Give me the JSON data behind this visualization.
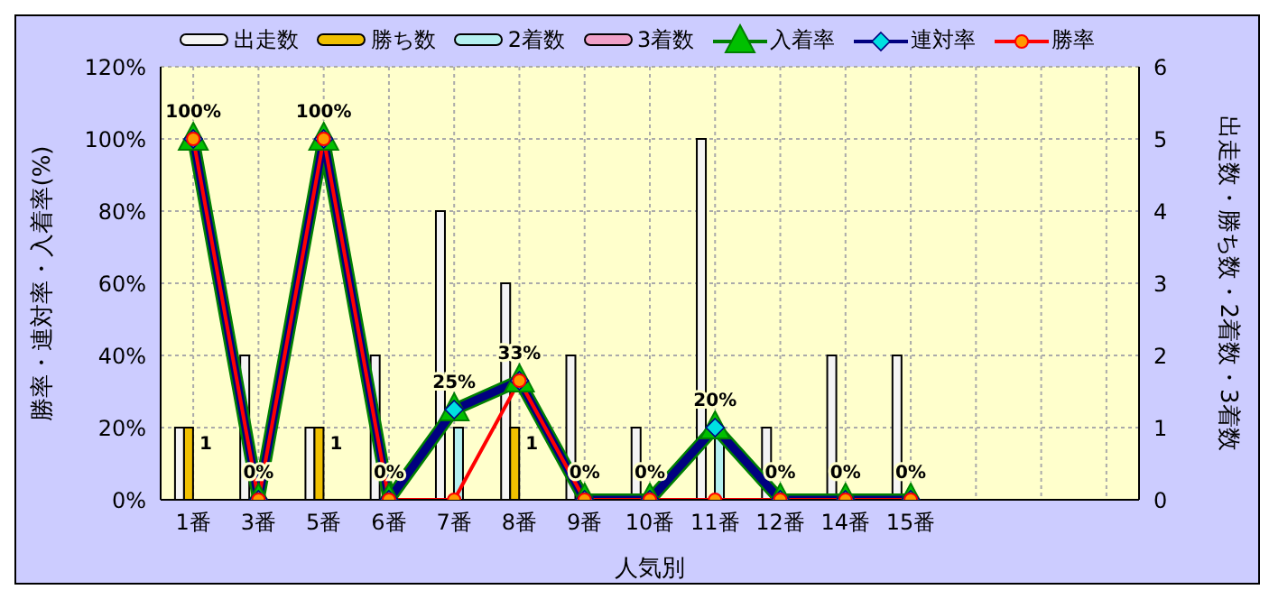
{
  "chart_data": {
    "type": "bar",
    "xlabel": "人気別",
    "ylabel": "勝率・連対率・入着率(%)",
    "y2label": "出走数・勝ち数・2着数・3着数",
    "categories": [
      "1番",
      "3番",
      "5番",
      "6番",
      "7番",
      "8番",
      "9番",
      "10番",
      "11番",
      "12番",
      "14番",
      "15番",
      null,
      null,
      null
    ],
    "series": [
      {
        "name": "出走数",
        "type": "bar",
        "axis": "y2",
        "color": "#f4f4f4",
        "values": [
          1,
          2,
          1,
          2,
          4,
          3,
          2,
          1,
          5,
          1,
          2,
          2,
          null,
          null,
          null
        ]
      },
      {
        "name": "勝ち数",
        "type": "bar",
        "axis": "y2",
        "color": "#f0c000",
        "values": [
          1,
          0,
          1,
          0,
          0,
          1,
          0,
          0,
          0,
          0,
          0,
          0,
          null,
          null,
          null
        ],
        "value_labels": [
          "1",
          null,
          "1",
          null,
          null,
          "1",
          null,
          null,
          null,
          null,
          null,
          null,
          null,
          null,
          null
        ]
      },
      {
        "name": "2着数",
        "type": "bar",
        "axis": "y2",
        "color": "#b4f0f0",
        "values": [
          0,
          0,
          0,
          0,
          1,
          0,
          0,
          0,
          1,
          0,
          0,
          0,
          null,
          null,
          null
        ]
      },
      {
        "name": "3着数",
        "type": "bar",
        "axis": "y2",
        "color": "#f0a0c8",
        "values": [
          0,
          0,
          0,
          0,
          0,
          0,
          0,
          0,
          0,
          0,
          0,
          0,
          null,
          null,
          null
        ]
      },
      {
        "name": "入着率",
        "type": "line",
        "axis": "y",
        "color": "#008000",
        "marker": "triangle",
        "values": [
          100,
          0,
          100,
          0,
          25,
          33,
          0,
          0,
          20,
          0,
          0,
          0,
          null,
          null,
          null
        ]
      },
      {
        "name": "連対率",
        "type": "line",
        "axis": "y",
        "color": "#000080",
        "marker": "diamond",
        "values": [
          100,
          0,
          100,
          0,
          25,
          33,
          0,
          0,
          20,
          0,
          0,
          0,
          null,
          null,
          null
        ],
        "value_labels": [
          "100%",
          "0%",
          "100%",
          "0%",
          "25%",
          "33%",
          "0%",
          "0%",
          "20%",
          "0%",
          "0%",
          "0%",
          null,
          null,
          null
        ]
      },
      {
        "name": "勝率",
        "type": "line",
        "axis": "y",
        "color": "#ff0000",
        "marker": "circle",
        "values": [
          100,
          0,
          100,
          0,
          0,
          33,
          0,
          0,
          0,
          0,
          0,
          0,
          null,
          null,
          null
        ]
      }
    ],
    "ylim": [
      0,
      120
    ],
    "yticks": [
      {
        "value": 0,
        "label": "0%"
      },
      {
        "value": 20,
        "label": "20%"
      },
      {
        "value": 40,
        "label": "40%"
      },
      {
        "value": 60,
        "label": "60%"
      },
      {
        "value": 80,
        "label": "80%"
      },
      {
        "value": 100,
        "label": "100%"
      },
      {
        "value": 120,
        "label": "120%"
      }
    ],
    "y2lim": [
      0,
      6
    ],
    "y2ticks": [
      0,
      1,
      2,
      3,
      4,
      5,
      6
    ],
    "grid": true,
    "legend": "top"
  }
}
